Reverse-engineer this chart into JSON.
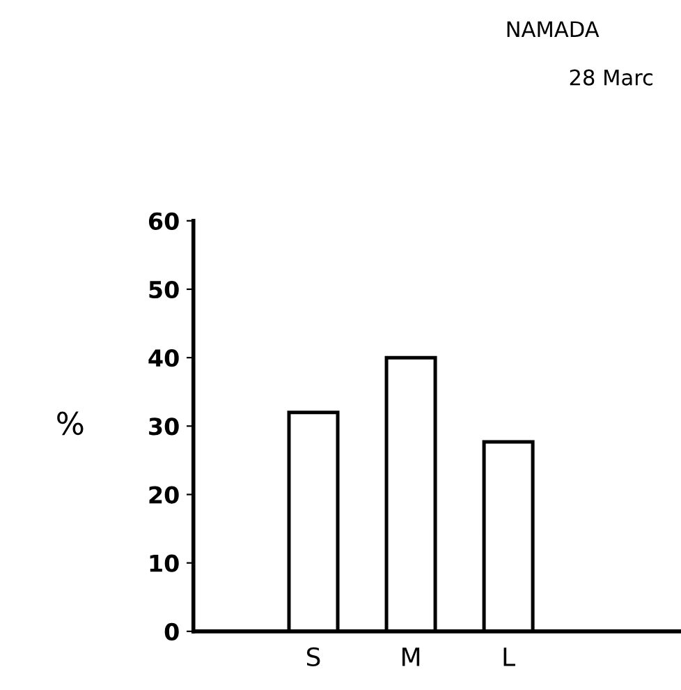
{
  "chart_data": {
    "type": "bar",
    "ylabel": "%",
    "categories": [
      null,
      "S",
      "M",
      "L",
      null
    ],
    "values": [
      null,
      32,
      40,
      27.7,
      null
    ],
    "color": "#ffffff",
    "ylim": [
      0,
      60
    ],
    "yticks": [
      0,
      10,
      20,
      30,
      40,
      50,
      60
    ],
    "grid": false,
    "annotations": [
      "NAMADA",
      "28 Marc"
    ]
  }
}
